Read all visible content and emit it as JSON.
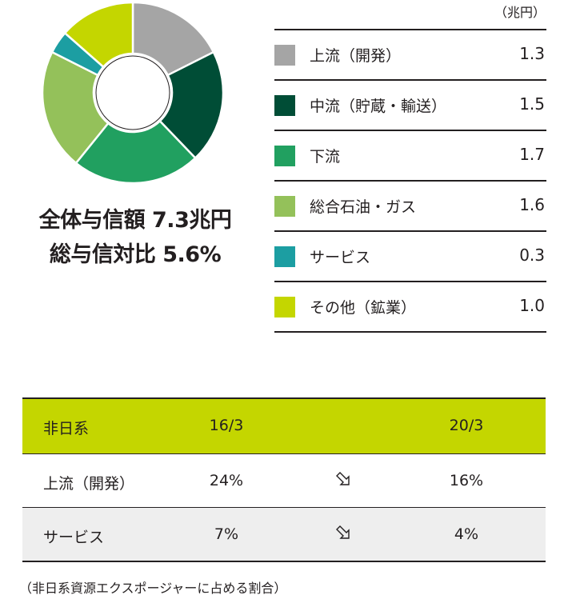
{
  "chart_data": {
    "type": "pie",
    "unit": "（兆円）",
    "categories": [
      "上流（開発）",
      "中流（貯蔵・輸送）",
      "下流",
      "総合石油・ガス",
      "サービス",
      "その他（鉱業）"
    ],
    "values": [
      1.3,
      1.5,
      1.7,
      1.6,
      0.3,
      1.0
    ],
    "value_labels": [
      "1.3",
      "1.5",
      "1.7",
      "1.6",
      "0.3",
      "1.0"
    ],
    "colors": [
      "#a5a5a5",
      "#004d36",
      "#21a060",
      "#94c15a",
      "#1c9ea2",
      "#c4d600"
    ],
    "donut": true,
    "legend_position": "right"
  },
  "headline": {
    "line1": "全体与信額 7.3兆円",
    "line2": "総与信対比 5.6%"
  },
  "table": {
    "header": {
      "label": "非日系",
      "col1": "16/3",
      "col2": "20/3"
    },
    "rows": [
      {
        "label": "上流（開発）",
        "v1": "24%",
        "v2": "16%",
        "trend": "down"
      },
      {
        "label": "サービス",
        "v1": "7%",
        "v2": "4%",
        "trend": "down"
      }
    ]
  },
  "footnote": "（非日系資源エクスポージャーに占める割合）"
}
